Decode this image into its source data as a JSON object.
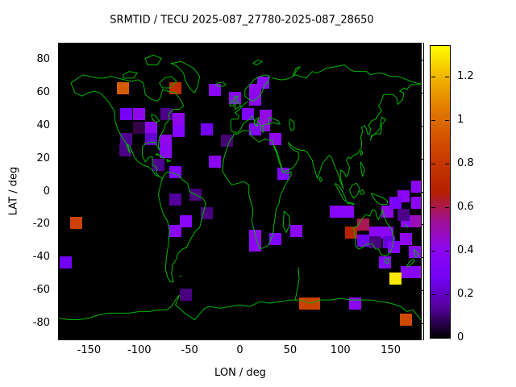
{
  "title": "SRMTID / TECU 2025-087_27780-2025-087_28650",
  "axes": {
    "x": {
      "label": "LON / deg",
      "ticks": [
        -150,
        -100,
        -50,
        0,
        50,
        100,
        150
      ],
      "range": [
        -180,
        180
      ]
    },
    "y": {
      "label": "LAT / deg",
      "ticks": [
        80,
        60,
        40,
        20,
        0,
        -20,
        -40,
        -60,
        -80
      ],
      "range": [
        -90,
        90
      ]
    }
  },
  "colorbar": {
    "ticks": [
      0,
      0.2,
      0.4,
      0.6,
      0.8,
      1,
      1.2
    ],
    "tick_labels": [
      "0",
      "0.2",
      "0.4",
      "0.6",
      "0.8",
      "1",
      "1.2"
    ],
    "max": 1.34
  },
  "colors": {
    "plot_bg": "#000000",
    "coastline": "#00b800",
    "frame": "#000000",
    "page_bg": "#ffffff"
  },
  "chart_data": {
    "type": "heatmap",
    "title": "SRMTID / TECU 2025-087_27780-2025-087_28650",
    "xlabel": "LON / deg",
    "ylabel": "LAT / deg",
    "xlim": [
      -180,
      180
    ],
    "ylim": [
      -90,
      90
    ],
    "clim": [
      0,
      1.34
    ],
    "legend_position": "right-colorbar",
    "grid": false,
    "palette": "gnuplot black-violet-red-yellow",
    "points": [
      {
        "lon": -116,
        "lat": 63,
        "value": 0.95
      },
      {
        "lon": -64,
        "lat": 63,
        "value": 0.75
      },
      {
        "lon": -25,
        "lat": 62,
        "value": 0.4
      },
      {
        "lon": -5,
        "lat": 57,
        "value": 0.4
      },
      {
        "lon": 23,
        "lat": 66,
        "value": 0.38
      },
      {
        "lon": 15,
        "lat": 62,
        "value": 0.42
      },
      {
        "lon": 15,
        "lat": 56,
        "value": 0.4
      },
      {
        "lon": -113,
        "lat": 47,
        "value": 0.28
      },
      {
        "lon": -100,
        "lat": 47,
        "value": 0.42
      },
      {
        "lon": -73,
        "lat": 47,
        "value": 0.12
      },
      {
        "lon": -61,
        "lat": 44,
        "value": 0.42
      },
      {
        "lon": -100,
        "lat": 39,
        "value": 0.06
      },
      {
        "lon": -88,
        "lat": 39,
        "value": 0.4
      },
      {
        "lon": -61,
        "lat": 37,
        "value": 0.36
      },
      {
        "lon": -113,
        "lat": 32,
        "value": 0.13
      },
      {
        "lon": -88,
        "lat": 32,
        "value": 0.2
      },
      {
        "lon": -74,
        "lat": 31,
        "value": 0.42
      },
      {
        "lon": -74,
        "lat": 24,
        "value": 0.4
      },
      {
        "lon": -114,
        "lat": 25,
        "value": 0.12
      },
      {
        "lon": -81,
        "lat": 16,
        "value": 0.13
      },
      {
        "lon": -64,
        "lat": 12,
        "value": 0.34
      },
      {
        "lon": 8,
        "lat": 47,
        "value": 0.34
      },
      {
        "lon": 26,
        "lat": 46,
        "value": 0.44
      },
      {
        "lon": 24,
        "lat": 40,
        "value": 0.44
      },
      {
        "lon": 15,
        "lat": 38,
        "value": 0.36
      },
      {
        "lon": -33,
        "lat": 38,
        "value": 0.28
      },
      {
        "lon": 35,
        "lat": 32,
        "value": 0.42
      },
      {
        "lon": -13,
        "lat": 31,
        "value": 0.1
      },
      {
        "lon": -25,
        "lat": 18,
        "value": 0.4
      },
      {
        "lon": 43,
        "lat": 11,
        "value": 0.34
      },
      {
        "lon": -44,
        "lat": -2,
        "value": 0.11
      },
      {
        "lon": -64,
        "lat": -5,
        "value": 0.14
      },
      {
        "lon": -33,
        "lat": -13,
        "value": 0.11
      },
      {
        "lon": -54,
        "lat": -18,
        "value": 0.38
      },
      {
        "lon": -64,
        "lat": -24,
        "value": 0.4
      },
      {
        "lon": -163,
        "lat": -19,
        "value": 0.85
      },
      {
        "lon": -173,
        "lat": -43,
        "value": 0.27
      },
      {
        "lon": 15,
        "lat": -27,
        "value": 0.42
      },
      {
        "lon": 15,
        "lat": -33,
        "value": 0.4
      },
      {
        "lon": 35,
        "lat": -29,
        "value": 0.34
      },
      {
        "lon": 56,
        "lat": -24,
        "value": 0.4
      },
      {
        "lon": 95,
        "lat": -12,
        "value": 0.38
      },
      {
        "lon": 107,
        "lat": -12,
        "value": 0.38
      },
      {
        "lon": 147,
        "lat": -12,
        "value": 0.42
      },
      {
        "lon": 123,
        "lat": -20,
        "value": 0.6
      },
      {
        "lon": 111,
        "lat": -25,
        "value": 0.7
      },
      {
        "lon": 135,
        "lat": -25,
        "value": 0.4
      },
      {
        "lon": 147,
        "lat": -25,
        "value": 0.4
      },
      {
        "lon": 123,
        "lat": -30,
        "value": 0.26
      },
      {
        "lon": 135,
        "lat": -31,
        "value": 0.11
      },
      {
        "lon": 148,
        "lat": -31,
        "value": 0.22
      },
      {
        "lon": 166,
        "lat": -18,
        "value": 0.4
      },
      {
        "lon": 176,
        "lat": -18,
        "value": 0.5
      },
      {
        "lon": 165,
        "lat": -29,
        "value": 0.42
      },
      {
        "lon": 153,
        "lat": -34,
        "value": 0.36
      },
      {
        "lon": 174,
        "lat": -37,
        "value": 0.38
      },
      {
        "lon": 144,
        "lat": -43,
        "value": 0.36
      },
      {
        "lon": 166,
        "lat": -49,
        "value": 0.38
      },
      {
        "lon": 177,
        "lat": -49,
        "value": 0.38
      },
      {
        "lon": 155,
        "lat": -53,
        "value": 1.3
      },
      {
        "lon": 176,
        "lat": 3,
        "value": 0.4
      },
      {
        "lon": 163,
        "lat": -3,
        "value": 0.4
      },
      {
        "lon": 176,
        "lat": -7,
        "value": 0.4
      },
      {
        "lon": 155,
        "lat": -7,
        "value": 0.3
      },
      {
        "lon": 163,
        "lat": -14,
        "value": 0.12
      },
      {
        "lon": -54,
        "lat": -63,
        "value": 0.11
      },
      {
        "lon": 65,
        "lat": -68,
        "value": 0.85
      },
      {
        "lon": 74,
        "lat": -68,
        "value": 0.85
      },
      {
        "lon": 115,
        "lat": -68,
        "value": 0.4
      },
      {
        "lon": 165,
        "lat": -78,
        "value": 0.88
      }
    ]
  }
}
